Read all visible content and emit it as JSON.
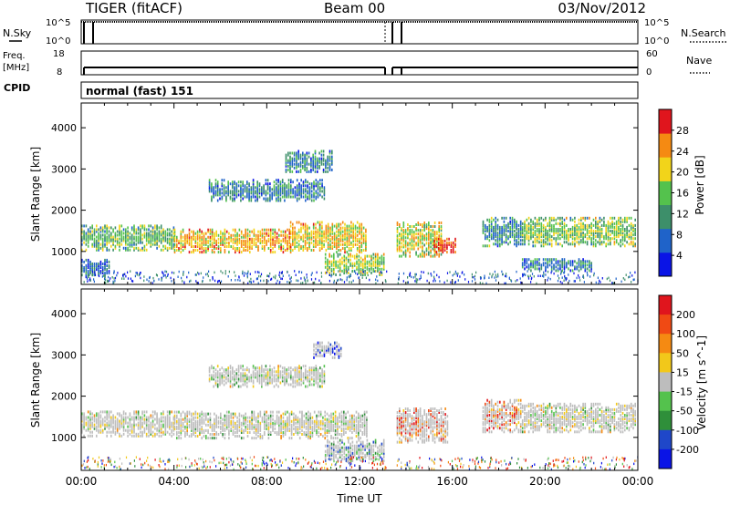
{
  "header": {
    "station": "TIGER (fitACF)",
    "beam": "Beam 00",
    "date": "03/Nov/2012"
  },
  "strip_panels": {
    "nsky": {
      "label": "N.Sky",
      "tick_top": "10^5",
      "tick_bottom": "10^0"
    },
    "nsearch": {
      "label": "N.Search",
      "tick_top": "10^5",
      "tick_bottom": "10^0"
    },
    "freq": {
      "label_line1": "Freq.",
      "label_line2": "[MHz]",
      "tick_top": "18",
      "tick_bottom": "8"
    },
    "nave": {
      "label": "Nave",
      "tick_top": "60",
      "tick_bottom": "0"
    },
    "cpid": {
      "label": "CPID",
      "value": "normal (fast) 151"
    }
  },
  "chart_data": [
    {
      "type": "heatmap",
      "name": "power",
      "xlabel": "",
      "ylabel": "Slant Range [km]",
      "x_ticks": [
        "00:00",
        "04:00",
        "08:00",
        "12:00",
        "16:00",
        "20:00",
        "00:00"
      ],
      "y_ticks": [
        1000,
        2000,
        3000,
        4000
      ],
      "ylim": [
        200,
        4600
      ],
      "xlim_hours": [
        0,
        24
      ],
      "data_gap_hours": [
        13.15,
        13.6
      ],
      "colorbar": {
        "label": "Power [dB]",
        "ticks": [
          "28",
          "24",
          "20",
          "16",
          "12",
          "8",
          "4"
        ],
        "colors": [
          "#0a14e6",
          "#1f63c9",
          "#3d8f6a",
          "#54c24d",
          "#f2d41a",
          "#f58a12",
          "#e0151d"
        ]
      },
      "echo_bands": [
        {
          "t0": 0.0,
          "t1": 1.2,
          "r0": 350,
          "r1": 800,
          "level": 0.25
        },
        {
          "t0": 0.0,
          "t1": 4.0,
          "r0": 1000,
          "r1": 1600,
          "level": 0.45
        },
        {
          "t0": 4.0,
          "t1": 9.0,
          "r0": 950,
          "r1": 1500,
          "level": 0.7
        },
        {
          "t0": 9.0,
          "t1": 12.3,
          "r0": 950,
          "r1": 1700,
          "level": 0.65
        },
        {
          "t0": 5.5,
          "t1": 10.5,
          "r0": 2200,
          "r1": 2700,
          "level": 0.3
        },
        {
          "t0": 8.8,
          "t1": 10.8,
          "r0": 2900,
          "r1": 3400,
          "level": 0.3
        },
        {
          "t0": 10.5,
          "t1": 13.1,
          "r0": 400,
          "r1": 900,
          "level": 0.55
        },
        {
          "t0": 13.6,
          "t1": 15.5,
          "r0": 850,
          "r1": 1700,
          "level": 0.6
        },
        {
          "t0": 15.2,
          "t1": 16.1,
          "r0": 950,
          "r1": 1300,
          "level": 0.9
        },
        {
          "t0": 17.3,
          "t1": 19.0,
          "r0": 1100,
          "r1": 1800,
          "level": 0.35
        },
        {
          "t0": 19.0,
          "t1": 23.9,
          "r0": 1100,
          "r1": 1800,
          "level": 0.5
        },
        {
          "t0": 19.0,
          "t1": 22.0,
          "r0": 500,
          "r1": 800,
          "level": 0.3
        }
      ]
    },
    {
      "type": "heatmap",
      "name": "velocity",
      "xlabel": "Time UT",
      "ylabel": "Slant Range [km]",
      "x_ticks": [
        "00:00",
        "04:00",
        "08:00",
        "12:00",
        "16:00",
        "20:00",
        "00:00"
      ],
      "y_ticks": [
        1000,
        2000,
        3000,
        4000
      ],
      "ylim": [
        200,
        4600
      ],
      "xlim_hours": [
        0,
        24
      ],
      "data_gap_hours": [
        13.15,
        13.6
      ],
      "colorbar": {
        "label": "Velocity [m s^-1]",
        "ticks": [
          "200",
          "100",
          "50",
          "15",
          "-15",
          "-50",
          "-100",
          "-200"
        ],
        "colors": [
          "#e0151d",
          "#f04a14",
          "#f58a12",
          "#f2c81a",
          "#bdbdbd",
          "#54c24d",
          "#2f8f3a",
          "#1f47c9",
          "#0a14e6"
        ]
      },
      "echo_bands": [
        {
          "t0": 0.0,
          "t1": 4.0,
          "r0": 1000,
          "r1": 1600,
          "level": 0.5
        },
        {
          "t0": 4.0,
          "t1": 12.3,
          "r0": 950,
          "r1": 1600,
          "level": 0.5
        },
        {
          "t0": 5.5,
          "t1": 10.5,
          "r0": 2200,
          "r1": 2700,
          "level": 0.45
        },
        {
          "t0": 10.0,
          "t1": 11.2,
          "r0": 2900,
          "r1": 3300,
          "level": 0.1
        },
        {
          "t0": 13.6,
          "t1": 15.8,
          "r0": 850,
          "r1": 1700,
          "level": 0.85
        },
        {
          "t0": 17.3,
          "t1": 19.0,
          "r0": 1100,
          "r1": 1900,
          "level": 0.8
        },
        {
          "t0": 19.0,
          "t1": 23.9,
          "r0": 1100,
          "r1": 1800,
          "level": 0.5
        },
        {
          "t0": 10.5,
          "t1": 13.1,
          "r0": 400,
          "r1": 900,
          "level": 0.3
        }
      ]
    }
  ]
}
